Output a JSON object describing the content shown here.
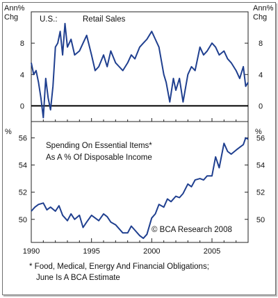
{
  "chart_data": [
    {
      "type": "line",
      "title": "Retail Sales",
      "region_label": "U.S.:",
      "left_unit": "Ann% Chg",
      "right_unit": "Ann% Chg",
      "x_range": [
        1990,
        2008
      ],
      "ylim": [
        -2,
        12
      ],
      "y_ticks": [
        "8",
        "4",
        "0"
      ],
      "zero_line": true,
      "color": "#1f3f8f",
      "series": [
        {
          "x": [
            1990.0,
            1990.2,
            1990.4,
            1990.6,
            1990.8,
            1991.0,
            1991.2,
            1991.4,
            1991.6,
            1991.8,
            1992.0,
            1992.2,
            1992.4,
            1992.6,
            1992.8,
            1993.0,
            1993.3,
            1993.6,
            1994.0,
            1994.3,
            1994.6,
            1995.0,
            1995.3,
            1995.6,
            1996.0,
            1996.3,
            1996.6,
            1997.0,
            1997.3,
            1997.6,
            1998.0,
            1998.3,
            1998.6,
            1999.0,
            1999.3,
            1999.6,
            2000.0,
            2000.3,
            2000.6,
            2001.0,
            2001.2,
            2001.5,
            2001.8,
            2002.0,
            2002.3,
            2002.6,
            2003.0,
            2003.3,
            2003.6,
            2004.0,
            2004.3,
            2004.6,
            2005.0,
            2005.3,
            2005.6,
            2006.0,
            2006.3,
            2006.6,
            2007.0,
            2007.3,
            2007.6,
            2007.8,
            2008.0
          ],
          "values": [
            5.5,
            4.0,
            4.5,
            3.0,
            1.0,
            -1.5,
            3.5,
            1.0,
            -0.5,
            2.5,
            7.5,
            8.0,
            9.5,
            6.5,
            10.5,
            7.5,
            8.5,
            6.5,
            7.0,
            8.0,
            9.0,
            6.5,
            4.5,
            5.0,
            6.5,
            5.0,
            7.0,
            5.5,
            5.0,
            4.5,
            5.5,
            6.5,
            6.0,
            7.5,
            8.0,
            8.5,
            9.5,
            8.5,
            7.5,
            4.0,
            3.0,
            0.5,
            3.5,
            2.0,
            3.5,
            0.5,
            4.0,
            5.0,
            4.5,
            7.5,
            6.5,
            7.0,
            8.0,
            7.5,
            6.5,
            7.0,
            6.0,
            5.5,
            4.5,
            3.5,
            5.0,
            2.5,
            3.0
          ]
        }
      ]
    },
    {
      "type": "line",
      "title": "Spending On Essential Items* As A % Of Disposable Income",
      "title_lines": [
        "Spending On Essential Items*",
        "As A % Of Disposable Income"
      ],
      "left_unit": "%",
      "right_unit": "%",
      "x_range": [
        1990,
        2008
      ],
      "ylim": [
        48.3,
        57.2
      ],
      "y_ticks": [
        "56",
        "54",
        "52",
        "50"
      ],
      "x_ticks": [
        "1990",
        "1995",
        "2000",
        "2005"
      ],
      "annotation": "© BCA Research 2008",
      "color": "#1f3f8f",
      "series": [
        {
          "x": [
            1990.0,
            1990.3,
            1990.6,
            1991.0,
            1991.3,
            1991.6,
            1992.0,
            1992.3,
            1992.6,
            1993.0,
            1993.3,
            1993.6,
            1994.0,
            1994.3,
            1994.6,
            1995.0,
            1995.3,
            1995.6,
            1996.0,
            1996.3,
            1996.6,
            1997.0,
            1997.3,
            1997.6,
            1998.0,
            1998.3,
            1998.6,
            1999.0,
            1999.3,
            1999.6,
            2000.0,
            2000.3,
            2000.6,
            2001.0,
            2001.3,
            2001.6,
            2002.0,
            2002.3,
            2002.6,
            2003.0,
            2003.3,
            2003.6,
            2004.0,
            2004.3,
            2004.6,
            2005.0,
            2005.3,
            2005.6,
            2006.0,
            2006.3,
            2006.6,
            2007.0,
            2007.3,
            2007.6,
            2007.8,
            2008.0
          ],
          "values": [
            50.6,
            50.9,
            51.1,
            51.2,
            50.7,
            50.9,
            50.6,
            51.0,
            50.3,
            49.9,
            50.4,
            50.0,
            50.3,
            49.4,
            49.8,
            50.3,
            50.1,
            49.9,
            50.4,
            50.2,
            49.8,
            49.6,
            49.3,
            49.0,
            49.0,
            49.5,
            49.2,
            48.8,
            48.6,
            48.9,
            50.1,
            50.4,
            51.1,
            50.9,
            51.5,
            51.3,
            51.7,
            51.6,
            51.9,
            52.6,
            52.4,
            52.9,
            53.0,
            52.9,
            53.2,
            53.2,
            54.6,
            53.8,
            55.6,
            55.0,
            54.8,
            55.1,
            55.3,
            55.5,
            56.0,
            55.9
          ]
        }
      ]
    }
  ],
  "footnote": {
    "line1": "* Food, Medical, Energy And Financial Obligations;",
    "line2": "June Is A BCA Estimate"
  }
}
